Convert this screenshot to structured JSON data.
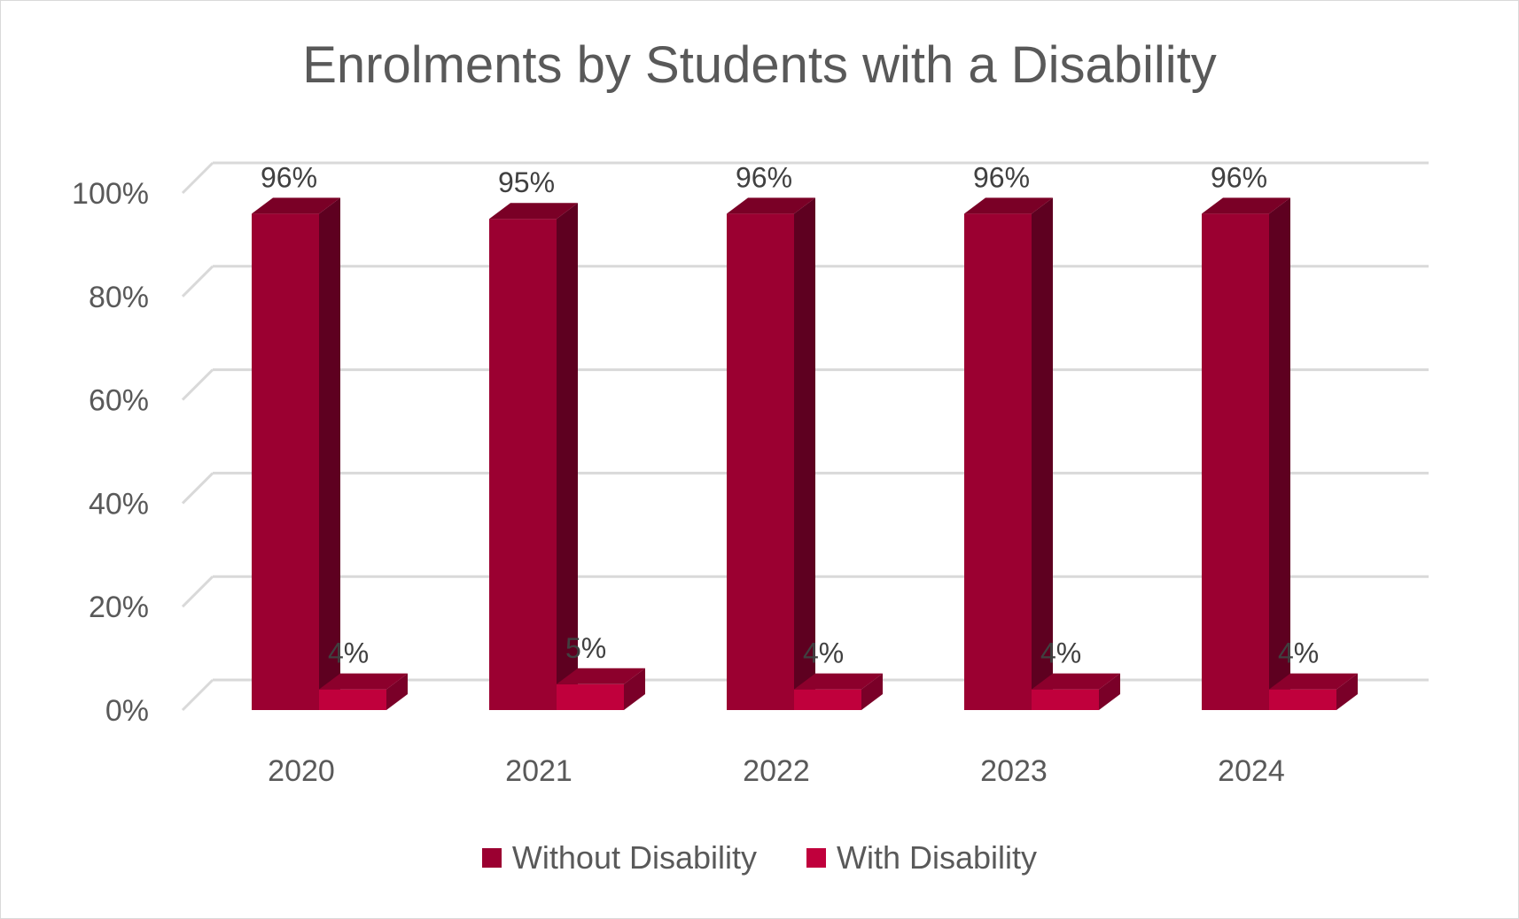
{
  "chart_data": {
    "type": "bar",
    "title": "Enrolments by Students with a Disability",
    "categories": [
      "2020",
      "2021",
      "2022",
      "2023",
      "2024"
    ],
    "series": [
      {
        "name": "Without Disability",
        "values": [
          96,
          95,
          96,
          96,
          96
        ],
        "labels": [
          "96%",
          "95%",
          "96%",
          "96%",
          "96%"
        ],
        "color": "#9b0031",
        "side_color": "#5e0020",
        "top_color": "#7a0026"
      },
      {
        "name": "With Disability",
        "values": [
          4,
          5,
          4,
          4,
          4
        ],
        "labels": [
          "4%",
          "5%",
          "4%",
          "4%",
          "4%"
        ],
        "color": "#c0003c",
        "side_color": "#7a0028",
        "top_color": "#8c002c"
      }
    ],
    "yticks": [
      "0%",
      "20%",
      "40%",
      "60%",
      "80%",
      "100%"
    ],
    "ylim": [
      0,
      100
    ],
    "grid": true,
    "legend_position": "bottom",
    "three_d": true
  }
}
